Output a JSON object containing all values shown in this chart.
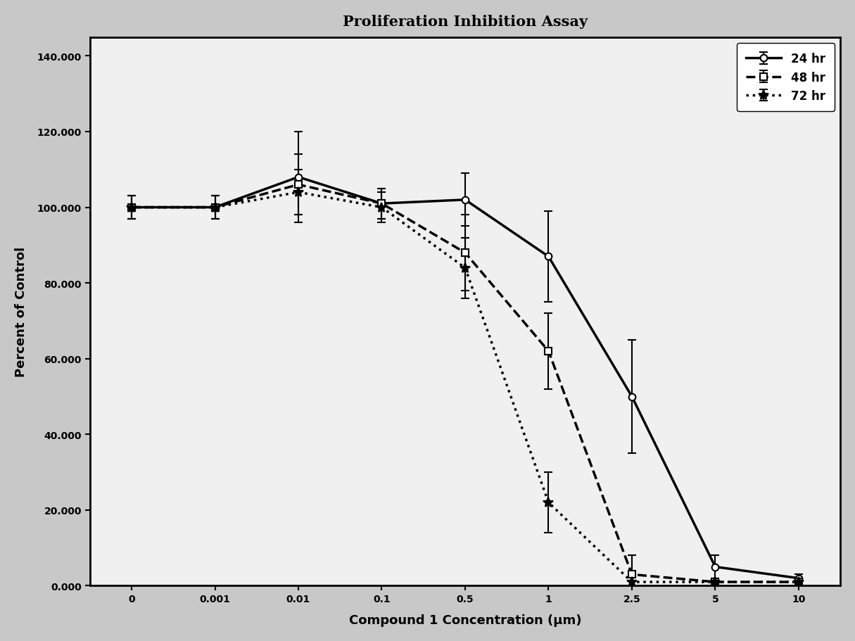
{
  "title": "Proliferation Inhibition Assay",
  "xlabel": "Compound 1 Concentration (μm)",
  "ylabel": "Percent of Control",
  "x_labels": [
    "0",
    "0.001",
    "0.01",
    "0.1",
    "0.5",
    "1",
    "2.5",
    "5",
    "10"
  ],
  "ylim": [
    0,
    145
  ],
  "yticks": [
    0,
    20,
    40,
    60,
    80,
    100,
    120,
    140
  ],
  "ytick_labels": [
    "0.000",
    "20.000",
    "40.000",
    "60.000",
    "80.000",
    "100.000",
    "120.000",
    "140.000"
  ],
  "series": [
    {
      "label": "24 hr",
      "linestyle": "-",
      "marker": "o",
      "color": "#000000",
      "linewidth": 2.5,
      "markersize": 7,
      "values": [
        100,
        100,
        108,
        101,
        102,
        87,
        50,
        5,
        2
      ],
      "yerr": [
        3,
        3,
        12,
        4,
        7,
        12,
        15,
        3,
        1
      ]
    },
    {
      "label": "48 hr",
      "linestyle": "--",
      "marker": "s",
      "color": "#000000",
      "linewidth": 2.5,
      "markersize": 7,
      "values": [
        100,
        100,
        106,
        101,
        88,
        62,
        3,
        1,
        1
      ],
      "yerr": [
        3,
        3,
        8,
        4,
        10,
        10,
        5,
        1,
        1
      ]
    },
    {
      "label": "72 hr",
      "linestyle": ":",
      "marker": "*",
      "color": "#000000",
      "linewidth": 2.5,
      "markersize": 10,
      "values": [
        100,
        100,
        104,
        100,
        84,
        22,
        1,
        1,
        1
      ],
      "yerr": [
        3,
        3,
        6,
        4,
        8,
        8,
        2,
        1,
        1
      ]
    }
  ],
  "outer_bg_color": "#c8c8c8",
  "plot_bg_color": "#f0f0f0",
  "legend_loc": "upper right",
  "title_fontsize": 15,
  "label_fontsize": 13,
  "tick_fontsize": 10
}
